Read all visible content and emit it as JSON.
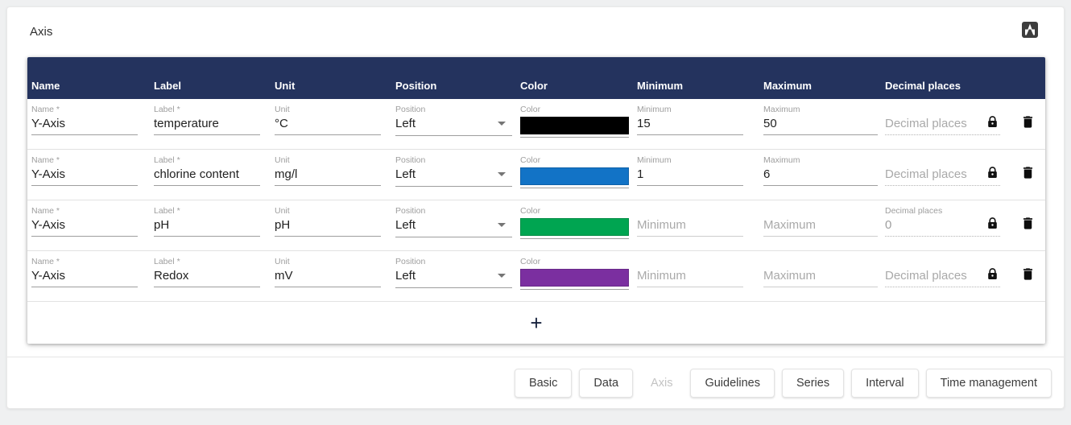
{
  "page": {
    "title": "Axis",
    "navy": "#24335e",
    "background": "#eff0f1"
  },
  "top_icon": {
    "name": "scroll-to-top-icon"
  },
  "table": {
    "columns": [
      "Name",
      "Label",
      "Unit",
      "Position",
      "Color",
      "Minimum",
      "Maximum",
      "Decimal places"
    ],
    "add_button_label": "+",
    "rows": [
      {
        "name": {
          "label": "Name *",
          "value": "Y-Axis",
          "placeholder": "Name *"
        },
        "axLabel": {
          "label": "Label *",
          "value": "temperature",
          "placeholder": "Label *"
        },
        "unit": {
          "label": "Unit",
          "value": "°C",
          "placeholder": "Unit"
        },
        "position": {
          "label": "Position",
          "value": "Left"
        },
        "color": {
          "label": "Color",
          "hex": "#000000"
        },
        "minimum": {
          "label": "Minimum",
          "value": "15",
          "placeholder": "Minimum"
        },
        "maximum": {
          "label": "Maximum",
          "value": "50",
          "placeholder": "Maximum"
        },
        "decimal": {
          "label": "Decimal places",
          "value": "",
          "placeholder": "Decimal places",
          "disabled": true
        }
      },
      {
        "name": {
          "label": "Name *",
          "value": "Y-Axis",
          "placeholder": "Name *"
        },
        "axLabel": {
          "label": "Label *",
          "value": "chlorine content",
          "placeholder": "Label *"
        },
        "unit": {
          "label": "Unit",
          "value": "mg/l",
          "placeholder": "Unit"
        },
        "position": {
          "label": "Position",
          "value": "Left"
        },
        "color": {
          "label": "Color",
          "hex": "#1273c6"
        },
        "minimum": {
          "label": "Minimum",
          "value": "1",
          "placeholder": "Minimum"
        },
        "maximum": {
          "label": "Maximum",
          "value": "6",
          "placeholder": "Maximum"
        },
        "decimal": {
          "label": "Decimal places",
          "value": "",
          "placeholder": "Decimal places",
          "disabled": true
        }
      },
      {
        "name": {
          "label": "Name *",
          "value": "Y-Axis",
          "placeholder": "Name *"
        },
        "axLabel": {
          "label": "Label *",
          "value": "pH",
          "placeholder": "Label *"
        },
        "unit": {
          "label": "Unit",
          "value": "pH",
          "placeholder": "Unit"
        },
        "position": {
          "label": "Position",
          "value": "Left"
        },
        "color": {
          "label": "Color",
          "hex": "#00a551"
        },
        "minimum": {
          "label": "Minimum",
          "value": "",
          "placeholder": "Minimum"
        },
        "maximum": {
          "label": "Maximum",
          "value": "",
          "placeholder": "Maximum"
        },
        "decimal": {
          "label": "Decimal places",
          "value": "0",
          "placeholder": "Decimal places",
          "disabled": true
        }
      },
      {
        "name": {
          "label": "Name *",
          "value": "Y-Axis",
          "placeholder": "Name *"
        },
        "axLabel": {
          "label": "Label *",
          "value": "Redox",
          "placeholder": "Label *"
        },
        "unit": {
          "label": "Unit",
          "value": "mV",
          "placeholder": "Unit"
        },
        "position": {
          "label": "Position",
          "value": "Left"
        },
        "color": {
          "label": "Color",
          "hex": "#7b2fa0"
        },
        "minimum": {
          "label": "Minimum",
          "value": "",
          "placeholder": "Minimum"
        },
        "maximum": {
          "label": "Maximum",
          "value": "",
          "placeholder": "Maximum"
        },
        "decimal": {
          "label": "Decimal places",
          "value": "",
          "placeholder": "Decimal places",
          "disabled": true
        }
      }
    ]
  },
  "footer": {
    "buttons": [
      {
        "label": "Basic",
        "disabled": false
      },
      {
        "label": "Data",
        "disabled": false
      },
      {
        "label": "Axis",
        "disabled": true
      },
      {
        "label": "Guidelines",
        "disabled": false
      },
      {
        "label": "Series",
        "disabled": false
      },
      {
        "label": "Interval",
        "disabled": false
      },
      {
        "label": "Time management",
        "disabled": false
      }
    ]
  }
}
